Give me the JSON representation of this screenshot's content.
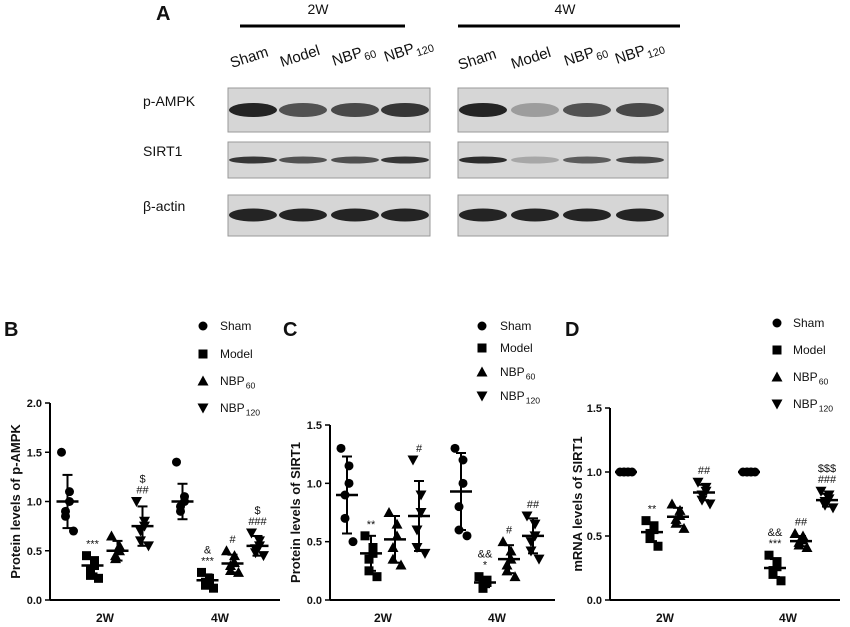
{
  "panel_a": {
    "label": "A",
    "groups": [
      {
        "label": "2W",
        "lanes": [
          {
            "text": "Sham"
          },
          {
            "text": "Model"
          },
          {
            "text": "NBP",
            "sub": "60"
          },
          {
            "text": "NBP",
            "sub": "120"
          }
        ]
      },
      {
        "label": "4W",
        "lanes": [
          {
            "text": "Sham"
          },
          {
            "text": "Model"
          },
          {
            "text": "NBP",
            "sub": "60"
          },
          {
            "text": "NBP",
            "sub": "120"
          }
        ]
      }
    ],
    "rows": [
      "p-AMPK",
      "SIRT1",
      "β-actin"
    ]
  },
  "chart_data": [
    {
      "type": "dotplot",
      "panel": "B",
      "ylabel": "Protein levels of p-AMPK",
      "categories": [
        "2W",
        "4W"
      ],
      "ylim": [
        0,
        2
      ],
      "yticks": [
        {
          "value": 0,
          "label": "0.0"
        },
        {
          "value": 0.5,
          "label": "0.5"
        },
        {
          "value": 1,
          "label": "1.0"
        },
        {
          "value": 1.5,
          "label": "1.5"
        },
        {
          "value": 2,
          "label": "2.0"
        }
      ],
      "series": [
        {
          "name": "Sham",
          "marker": "circle",
          "means": [
            1.0,
            1.0
          ],
          "sds": [
            0.27,
            0.18
          ],
          "points": [
            [
              1.5,
              1.0,
              1.1,
              0.9,
              0.85,
              0.7
            ],
            [
              1.4,
              1.05,
              1.0,
              0.95,
              0.9
            ]
          ],
          "labels": [
            [],
            []
          ]
        },
        {
          "name": "Model",
          "marker": "square",
          "means": [
            0.35,
            0.2
          ],
          "sds": [
            0.08,
            0.06
          ],
          "points": [
            [
              0.45,
              0.4,
              0.35,
              0.3,
              0.25,
              0.22
            ],
            [
              0.28,
              0.22,
              0.2,
              0.18,
              0.15,
              0.12
            ]
          ],
          "labels": [
            [
              "***"
            ],
            [
              "&",
              "***"
            ]
          ]
        },
        {
          "name": "NBP",
          "sub": "60",
          "marker": "triangle-up",
          "means": [
            0.5,
            0.37
          ],
          "sds": [
            0.1,
            0.09
          ],
          "points": [
            [
              0.65,
              0.55,
              0.5,
              0.45,
              0.42
            ],
            [
              0.5,
              0.45,
              0.38,
              0.35,
              0.3,
              0.28
            ]
          ],
          "labels": [
            [],
            [
              "#"
            ]
          ]
        },
        {
          "name": "NBP",
          "sub": "120",
          "marker": "triangle-down",
          "means": [
            0.75,
            0.55
          ],
          "sds": [
            0.2,
            0.1
          ],
          "points": [
            [
              1.0,
              0.8,
              0.75,
              0.7,
              0.6,
              0.55
            ],
            [
              0.68,
              0.6,
              0.55,
              0.52,
              0.48,
              0.45
            ]
          ],
          "labels": [
            [
              "$",
              "##"
            ],
            [
              "$",
              "###"
            ]
          ]
        }
      ]
    },
    {
      "type": "dotplot",
      "panel": "C",
      "ylabel": "Protein levels of SIRT1",
      "categories": [
        "2W",
        "4W"
      ],
      "ylim": [
        0,
        1.5
      ],
      "yticks": [
        {
          "value": 0,
          "label": "0.0"
        },
        {
          "value": 0.5,
          "label": "0.5"
        },
        {
          "value": 1,
          "label": "1.0"
        },
        {
          "value": 1.5,
          "label": "1.5"
        }
      ],
      "series": [
        {
          "name": "Sham",
          "marker": "circle",
          "means": [
            0.9,
            0.93
          ],
          "sds": [
            0.33,
            0.33
          ],
          "points": [
            [
              1.3,
              1.15,
              1.0,
              0.9,
              0.7,
              0.5
            ],
            [
              1.3,
              1.2,
              1.0,
              0.8,
              0.6,
              0.55
            ]
          ],
          "labels": [
            [],
            []
          ]
        },
        {
          "name": "Model",
          "marker": "square",
          "means": [
            0.4,
            0.15
          ],
          "sds": [
            0.15,
            0.04
          ],
          "points": [
            [
              0.55,
              0.45,
              0.4,
              0.35,
              0.25,
              0.2
            ],
            [
              0.2,
              0.17,
              0.15,
              0.13,
              0.1
            ]
          ],
          "labels": [
            [
              "**"
            ],
            [
              "&&",
              "*"
            ]
          ]
        },
        {
          "name": "NBP",
          "sub": "60",
          "marker": "triangle-up",
          "means": [
            0.52,
            0.35
          ],
          "sds": [
            0.2,
            0.12
          ],
          "points": [
            [
              0.75,
              0.65,
              0.55,
              0.45,
              0.35,
              0.3
            ],
            [
              0.5,
              0.42,
              0.35,
              0.3,
              0.25,
              0.2
            ]
          ],
          "labels": [
            [],
            [
              "#"
            ]
          ]
        },
        {
          "name": "NBP",
          "sub": "120",
          "marker": "triangle-down",
          "means": [
            0.72,
            0.55
          ],
          "sds": [
            0.3,
            0.15
          ],
          "points": [
            [
              1.2,
              0.9,
              0.75,
              0.6,
              0.45,
              0.4
            ],
            [
              0.72,
              0.65,
              0.55,
              0.5,
              0.42,
              0.35
            ]
          ],
          "labels": [
            [
              "#"
            ],
            [
              "##"
            ]
          ]
        }
      ]
    },
    {
      "type": "dotplot",
      "panel": "D",
      "ylabel": "mRNA levels of SIRT1",
      "categories": [
        "2W",
        "4W"
      ],
      "ylim": [
        0,
        1.5
      ],
      "yticks": [
        {
          "value": 0,
          "label": "0.0"
        },
        {
          "value": 0.5,
          "label": "0.5"
        },
        {
          "value": 1,
          "label": "1.0"
        },
        {
          "value": 1.5,
          "label": "1.5"
        }
      ],
      "series": [
        {
          "name": "Sham",
          "marker": "circle",
          "means": [
            1.0,
            1.0
          ],
          "sds": [
            0,
            0
          ],
          "points": [
            [
              1.0,
              1.0,
              1.0,
              1.0,
              1.0,
              1.0
            ],
            [
              1.0,
              1.0,
              1.0,
              1.0,
              1.0,
              1.0
            ]
          ],
          "labels": [
            [],
            []
          ]
        },
        {
          "name": "Model",
          "marker": "square",
          "means": [
            0.53,
            0.25
          ],
          "sds": [
            0.07,
            0.07
          ],
          "points": [
            [
              0.62,
              0.58,
              0.55,
              0.52,
              0.48,
              0.42
            ],
            [
              0.35,
              0.3,
              0.26,
              0.23,
              0.2,
              0.15
            ]
          ],
          "labels": [
            [
              "**"
            ],
            [
              "&&",
              "***"
            ]
          ]
        },
        {
          "name": "NBP",
          "sub": "60",
          "marker": "triangle-up",
          "means": [
            0.65,
            0.46
          ],
          "sds": [
            0.07,
            0.04
          ],
          "points": [
            [
              0.75,
              0.7,
              0.66,
              0.63,
              0.6,
              0.56
            ],
            [
              0.52,
              0.5,
              0.47,
              0.45,
              0.43,
              0.41
            ]
          ],
          "labels": [
            [],
            [
              "##"
            ]
          ]
        },
        {
          "name": "NBP",
          "sub": "120",
          "marker": "triangle-down",
          "means": [
            0.84,
            0.78
          ],
          "sds": [
            0.06,
            0.05
          ],
          "points": [
            [
              0.92,
              0.88,
              0.85,
              0.82,
              0.78,
              0.75
            ],
            [
              0.85,
              0.82,
              0.79,
              0.77,
              0.74,
              0.72
            ]
          ],
          "labels": [
            [
              "##"
            ],
            [
              "$$$",
              "###"
            ]
          ]
        }
      ]
    }
  ]
}
